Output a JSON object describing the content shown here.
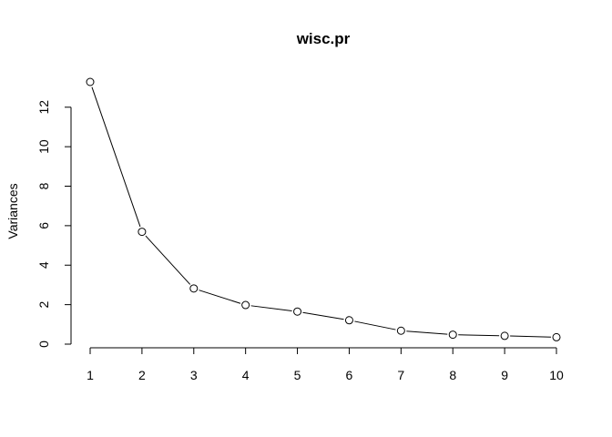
{
  "chart_data": {
    "type": "line",
    "title": "wisc.pr",
    "xlabel": "",
    "ylabel": "Variances",
    "x": [
      1,
      2,
      3,
      4,
      5,
      6,
      7,
      8,
      9,
      10
    ],
    "series": [
      {
        "values": [
          13.28,
          5.69,
          2.82,
          1.98,
          1.65,
          1.21,
          0.68,
          0.48,
          0.42,
          0.35
        ]
      }
    ],
    "xlim": [
      1,
      10
    ],
    "ylim": [
      0,
      13.28
    ],
    "xticks": [
      1,
      2,
      3,
      4,
      5,
      6,
      7,
      8,
      9,
      10
    ],
    "yticks": [
      0,
      2,
      4,
      6,
      8,
      10,
      12
    ],
    "grid": false,
    "legend": "none",
    "marker": "open-circle",
    "line_color": "#000000"
  }
}
